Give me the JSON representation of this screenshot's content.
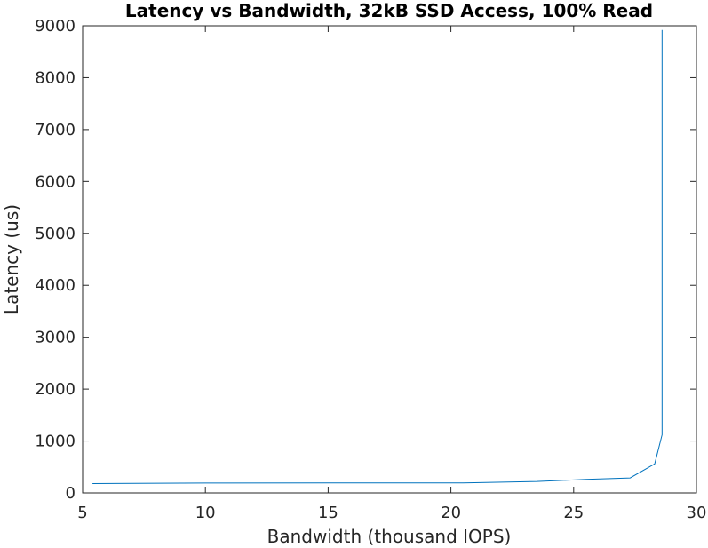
{
  "chart_data": {
    "type": "line",
    "title": "Latency vs Bandwidth, 32kB SSD Access, 100% Read",
    "xlabel": "Bandwidth (thousand IOPS)",
    "ylabel": "Latency (us)",
    "xlim": [
      5,
      30
    ],
    "ylim": [
      0,
      9000
    ],
    "xticks": [
      "5",
      "10",
      "15",
      "20",
      "25",
      "30"
    ],
    "yticks": [
      "0",
      "1000",
      "2000",
      "3000",
      "4000",
      "5000",
      "6000",
      "7000",
      "8000",
      "9000"
    ],
    "grid": false,
    "legend": "none",
    "series": [
      {
        "color": "#0072bd",
        "x": [
          5.4,
          10.0,
          15.0,
          20.5,
          23.5,
          25.5,
          27.3,
          28.3,
          28.6,
          28.6
        ],
        "y": [
          180,
          190,
          192,
          194,
          220,
          260,
          290,
          560,
          1120,
          8920
        ]
      }
    ]
  }
}
